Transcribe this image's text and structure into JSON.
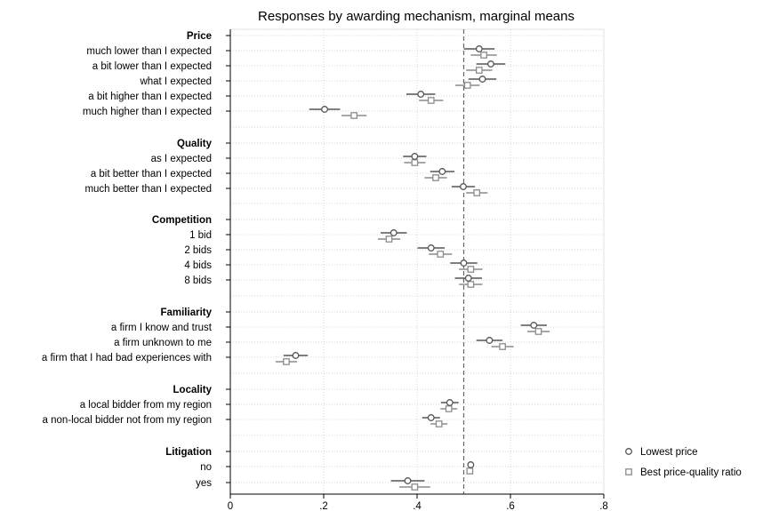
{
  "chart_data": {
    "type": "dot-ci",
    "title": "Responses by awarding mechanism, marginal means",
    "xlabel": "",
    "ylabel": "",
    "xlim": [
      0,
      0.8
    ],
    "x_ticks": [
      0,
      0.2,
      0.4,
      0.6,
      0.8
    ],
    "x_tick_labels": [
      "0",
      ".2",
      ".4",
      ".6",
      ".8"
    ],
    "reference_line": 0.5,
    "grid": true,
    "legend_position": "right",
    "series": [
      {
        "name": "Lowest price",
        "marker": "circle",
        "color": "#555555"
      },
      {
        "name": "Best price-quality ratio",
        "marker": "square",
        "color": "#8c8c8c"
      }
    ],
    "groups": [
      {
        "label": "Price",
        "levels": [
          {
            "label": "much lower than I expected",
            "values": [
              [
                0.533,
                0.5,
                0.566
              ],
              [
                0.543,
                0.515,
                0.571
              ]
            ]
          },
          {
            "label": "a bit lower than I expected",
            "values": [
              [
                0.558,
                0.527,
                0.589
              ],
              [
                0.533,
                0.505,
                0.561
              ]
            ]
          },
          {
            "label": "what I expected",
            "values": [
              [
                0.54,
                0.51,
                0.57
              ],
              [
                0.508,
                0.482,
                0.534
              ]
            ]
          },
          {
            "label": "a bit higher than I expected",
            "values": [
              [
                0.408,
                0.377,
                0.439
              ],
              [
                0.43,
                0.404,
                0.456
              ]
            ]
          },
          {
            "label": "much higher than I expected",
            "values": [
              [
                0.202,
                0.169,
                0.235
              ],
              [
                0.265,
                0.238,
                0.292
              ]
            ]
          }
        ]
      },
      {
        "label": "Quality",
        "levels": [
          {
            "label": "as I expected",
            "values": [
              [
                0.395,
                0.37,
                0.42
              ],
              [
                0.395,
                0.372,
                0.418
              ]
            ]
          },
          {
            "label": "a bit better than I expected",
            "values": [
              [
                0.454,
                0.428,
                0.48
              ],
              [
                0.44,
                0.416,
                0.464
              ]
            ]
          },
          {
            "label": "much better than I expected",
            "values": [
              [
                0.499,
                0.474,
                0.524
              ],
              [
                0.528,
                0.505,
                0.551
              ]
            ]
          }
        ]
      },
      {
        "label": "Competition",
        "levels": [
          {
            "label": "1 bid",
            "values": [
              [
                0.35,
                0.322,
                0.378
              ],
              [
                0.34,
                0.316,
                0.364
              ]
            ]
          },
          {
            "label": "2 bids",
            "values": [
              [
                0.43,
                0.401,
                0.459
              ],
              [
                0.45,
                0.425,
                0.475
              ]
            ]
          },
          {
            "label": "4 bids",
            "values": [
              [
                0.5,
                0.471,
                0.529
              ],
              [
                0.515,
                0.49,
                0.54
              ]
            ]
          },
          {
            "label": "8 bids",
            "values": [
              [
                0.51,
                0.481,
                0.539
              ],
              [
                0.515,
                0.49,
                0.54
              ]
            ]
          }
        ]
      },
      {
        "label": "Familiarity",
        "levels": [
          {
            "label": "a firm I know and trust",
            "values": [
              [
                0.65,
                0.622,
                0.678
              ],
              [
                0.66,
                0.636,
                0.684
              ]
            ]
          },
          {
            "label": "a firm unknown to me",
            "values": [
              [
                0.555,
                0.527,
                0.583
              ],
              [
                0.583,
                0.559,
                0.607
              ]
            ]
          },
          {
            "label": "a firm that I had bad experiences with",
            "values": [
              [
                0.14,
                0.114,
                0.166
              ],
              [
                0.12,
                0.097,
                0.143
              ]
            ]
          }
        ]
      },
      {
        "label": "Locality",
        "levels": [
          {
            "label": "a local bidder from my region",
            "values": [
              [
                0.47,
                0.451,
                0.489
              ],
              [
                0.468,
                0.45,
                0.486
              ]
            ]
          },
          {
            "label": "a non-local bidder not from my region",
            "values": [
              [
                0.43,
                0.411,
                0.449
              ],
              [
                0.447,
                0.429,
                0.465
              ]
            ]
          }
        ]
      },
      {
        "label": "Litigation",
        "levels": [
          {
            "label": "no",
            "values": [
              [
                0.515,
                0.512,
                0.518
              ],
              [
                0.513,
                0.51,
                0.516
              ]
            ]
          },
          {
            "label": "yes",
            "values": [
              [
                0.38,
                0.344,
                0.416
              ],
              [
                0.395,
                0.362,
                0.428
              ]
            ]
          }
        ]
      }
    ]
  }
}
